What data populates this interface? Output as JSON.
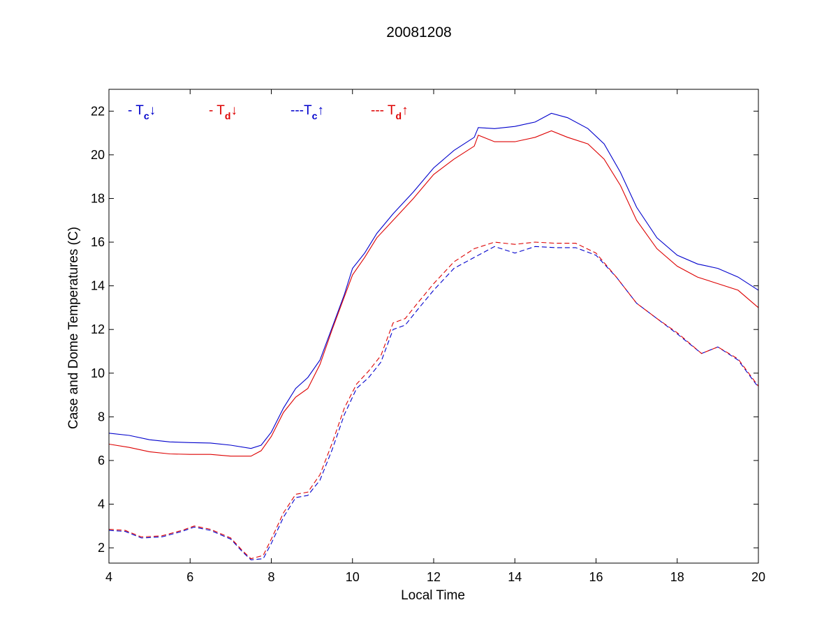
{
  "chart_data": {
    "type": "line",
    "title": "20081208",
    "xlabel": "Local Time",
    "ylabel": "Case and Dome Temperatures (C)",
    "xlim": [
      4,
      20
    ],
    "ylim": [
      1.3,
      23
    ],
    "xticks": [
      4,
      6,
      8,
      10,
      12,
      14,
      16,
      18,
      20
    ],
    "yticks": [
      2,
      4,
      6,
      8,
      10,
      12,
      14,
      16,
      18,
      20,
      22
    ],
    "grid": false,
    "legend_position": "top-left, inside plot",
    "legend": [
      {
        "prefix": "- T",
        "sub": "c",
        "arrow": "↓",
        "color": "#0000cc",
        "series": "Tc_down"
      },
      {
        "prefix": "- T",
        "sub": "d",
        "arrow": "↓",
        "color": "#dd0000",
        "series": "Td_down"
      },
      {
        "prefix": "---T",
        "sub": "c",
        "arrow": "↑",
        "color": "#0000cc",
        "series": "Tc_up"
      },
      {
        "prefix": "--- T",
        "sub": "d",
        "arrow": "↑",
        "color": "#dd0000",
        "series": "Td_up"
      }
    ],
    "series": [
      {
        "key": "Tc_down",
        "color": "#0000cc",
        "dash": "solid",
        "points": [
          [
            4.0,
            7.25
          ],
          [
            4.5,
            7.15
          ],
          [
            5.0,
            6.95
          ],
          [
            5.5,
            6.85
          ],
          [
            6.0,
            6.82
          ],
          [
            6.5,
            6.8
          ],
          [
            7.0,
            6.7
          ],
          [
            7.5,
            6.55
          ],
          [
            7.75,
            6.7
          ],
          [
            8.0,
            7.3
          ],
          [
            8.3,
            8.4
          ],
          [
            8.6,
            9.3
          ],
          [
            8.9,
            9.8
          ],
          [
            9.2,
            10.6
          ],
          [
            9.5,
            12.1
          ],
          [
            9.8,
            13.6
          ],
          [
            10.0,
            14.8
          ],
          [
            10.3,
            15.5
          ],
          [
            10.6,
            16.4
          ],
          [
            11.0,
            17.3
          ],
          [
            11.5,
            18.3
          ],
          [
            12.0,
            19.4
          ],
          [
            12.5,
            20.2
          ],
          [
            13.0,
            20.8
          ],
          [
            13.1,
            21.25
          ],
          [
            13.5,
            21.2
          ],
          [
            14.0,
            21.3
          ],
          [
            14.5,
            21.5
          ],
          [
            14.9,
            21.9
          ],
          [
            15.3,
            21.7
          ],
          [
            15.8,
            21.2
          ],
          [
            16.2,
            20.5
          ],
          [
            16.6,
            19.2
          ],
          [
            17.0,
            17.6
          ],
          [
            17.5,
            16.2
          ],
          [
            18.0,
            15.4
          ],
          [
            18.5,
            15.0
          ],
          [
            19.0,
            14.8
          ],
          [
            19.5,
            14.4
          ],
          [
            20.0,
            13.8
          ]
        ]
      },
      {
        "key": "Td_down",
        "color": "#dd0000",
        "dash": "solid",
        "points": [
          [
            4.0,
            6.75
          ],
          [
            4.5,
            6.6
          ],
          [
            5.0,
            6.4
          ],
          [
            5.5,
            6.3
          ],
          [
            6.0,
            6.28
          ],
          [
            6.5,
            6.28
          ],
          [
            7.0,
            6.2
          ],
          [
            7.5,
            6.2
          ],
          [
            7.75,
            6.45
          ],
          [
            8.0,
            7.1
          ],
          [
            8.3,
            8.2
          ],
          [
            8.6,
            8.9
          ],
          [
            8.9,
            9.3
          ],
          [
            9.2,
            10.4
          ],
          [
            9.5,
            12.0
          ],
          [
            9.8,
            13.5
          ],
          [
            10.0,
            14.5
          ],
          [
            10.3,
            15.3
          ],
          [
            10.6,
            16.2
          ],
          [
            11.0,
            17.0
          ],
          [
            11.5,
            18.0
          ],
          [
            12.0,
            19.1
          ],
          [
            12.5,
            19.8
          ],
          [
            13.0,
            20.4
          ],
          [
            13.1,
            20.9
          ],
          [
            13.5,
            20.6
          ],
          [
            14.0,
            20.6
          ],
          [
            14.5,
            20.8
          ],
          [
            14.9,
            21.1
          ],
          [
            15.3,
            20.8
          ],
          [
            15.8,
            20.5
          ],
          [
            16.2,
            19.8
          ],
          [
            16.6,
            18.6
          ],
          [
            17.0,
            17.0
          ],
          [
            17.5,
            15.7
          ],
          [
            18.0,
            14.9
          ],
          [
            18.5,
            14.4
          ],
          [
            19.0,
            14.1
          ],
          [
            19.5,
            13.8
          ],
          [
            20.0,
            13.0
          ]
        ]
      },
      {
        "key": "Tc_up",
        "color": "#0000cc",
        "dash": "dashed",
        "points": [
          [
            4.0,
            2.8
          ],
          [
            4.4,
            2.75
          ],
          [
            4.8,
            2.45
          ],
          [
            5.3,
            2.5
          ],
          [
            5.8,
            2.75
          ],
          [
            6.1,
            2.95
          ],
          [
            6.5,
            2.8
          ],
          [
            7.0,
            2.4
          ],
          [
            7.3,
            1.8
          ],
          [
            7.5,
            1.45
          ],
          [
            7.8,
            1.5
          ],
          [
            8.0,
            2.2
          ],
          [
            8.3,
            3.4
          ],
          [
            8.6,
            4.3
          ],
          [
            8.9,
            4.4
          ],
          [
            9.2,
            5.1
          ],
          [
            9.5,
            6.5
          ],
          [
            9.8,
            8.1
          ],
          [
            10.1,
            9.3
          ],
          [
            10.4,
            9.8
          ],
          [
            10.7,
            10.5
          ],
          [
            11.0,
            12.0
          ],
          [
            11.3,
            12.2
          ],
          [
            11.6,
            12.9
          ],
          [
            12.0,
            13.8
          ],
          [
            12.5,
            14.8
          ],
          [
            13.0,
            15.3
          ],
          [
            13.5,
            15.8
          ],
          [
            14.0,
            15.5
          ],
          [
            14.5,
            15.8
          ],
          [
            15.0,
            15.75
          ],
          [
            15.5,
            15.75
          ],
          [
            16.0,
            15.4
          ],
          [
            16.5,
            14.4
          ],
          [
            17.0,
            13.2
          ],
          [
            17.5,
            12.5
          ],
          [
            18.0,
            11.8
          ],
          [
            18.6,
            10.9
          ],
          [
            19.0,
            11.2
          ],
          [
            19.5,
            10.6
          ],
          [
            20.0,
            9.35
          ]
        ]
      },
      {
        "key": "Td_up",
        "color": "#dd0000",
        "dash": "dashed",
        "points": [
          [
            4.0,
            2.85
          ],
          [
            4.4,
            2.8
          ],
          [
            4.8,
            2.5
          ],
          [
            5.3,
            2.55
          ],
          [
            5.8,
            2.8
          ],
          [
            6.1,
            3.0
          ],
          [
            6.5,
            2.85
          ],
          [
            7.0,
            2.45
          ],
          [
            7.3,
            1.85
          ],
          [
            7.5,
            1.5
          ],
          [
            7.8,
            1.65
          ],
          [
            8.0,
            2.4
          ],
          [
            8.3,
            3.6
          ],
          [
            8.6,
            4.45
          ],
          [
            8.9,
            4.55
          ],
          [
            9.2,
            5.35
          ],
          [
            9.5,
            6.8
          ],
          [
            9.8,
            8.4
          ],
          [
            10.1,
            9.5
          ],
          [
            10.4,
            10.1
          ],
          [
            10.7,
            10.8
          ],
          [
            11.0,
            12.3
          ],
          [
            11.3,
            12.5
          ],
          [
            11.6,
            13.2
          ],
          [
            12.0,
            14.1
          ],
          [
            12.5,
            15.1
          ],
          [
            13.0,
            15.7
          ],
          [
            13.5,
            16.0
          ],
          [
            14.0,
            15.9
          ],
          [
            14.5,
            16.0
          ],
          [
            15.0,
            15.95
          ],
          [
            15.5,
            15.95
          ],
          [
            16.0,
            15.5
          ],
          [
            16.5,
            14.4
          ],
          [
            17.0,
            13.2
          ],
          [
            17.5,
            12.5
          ],
          [
            18.0,
            11.85
          ],
          [
            18.6,
            10.9
          ],
          [
            19.0,
            11.2
          ],
          [
            19.5,
            10.65
          ],
          [
            20.0,
            9.4
          ]
        ]
      }
    ]
  }
}
